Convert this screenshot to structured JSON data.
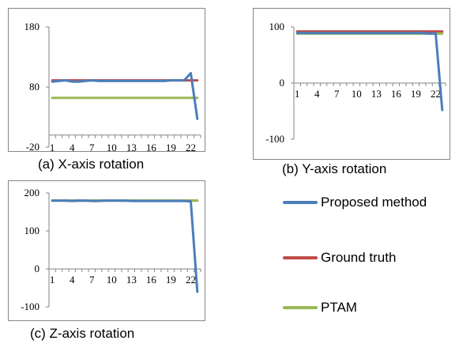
{
  "colors": {
    "proposed": "#4a7ebb",
    "ground_truth": "#be4b48",
    "ptam": "#98b954",
    "axis": "#868686",
    "frame": "#868686"
  },
  "legend": [
    {
      "name": "Proposed method",
      "color": "#4a7ebb"
    },
    {
      "name": "Ground truth",
      "color": "#be4b48"
    },
    {
      "name": "PTAM",
      "color": "#98b954"
    }
  ],
  "chart_data": [
    {
      "type": "line",
      "caption": "(a) X-axis rotation",
      "ylim": [
        -20,
        180
      ],
      "y_ticks": [
        -20,
        80,
        180
      ],
      "x_ticks": [
        "1",
        "4",
        "7",
        "10",
        "13",
        "16",
        "19",
        "22"
      ],
      "x_count": 23,
      "axis_y": 0,
      "series": [
        {
          "name": "Proposed method",
          "color": "#4a7ebb",
          "values": [
            89,
            90,
            91,
            89,
            89,
            90,
            91,
            90,
            90,
            90,
            90,
            90,
            90,
            90,
            90,
            90,
            90,
            90,
            91,
            91,
            91,
            103,
            27
          ]
        },
        {
          "name": "Ground truth",
          "color": "#be4b48",
          "values": [
            91,
            91,
            91,
            91,
            91,
            91,
            91,
            91,
            91,
            91,
            91,
            91,
            91,
            91,
            91,
            91,
            91,
            91,
            91,
            91,
            91,
            91,
            91
          ]
        },
        {
          "name": "PTAM",
          "color": "#98b954",
          "values": [
            62,
            62,
            62,
            62,
            62,
            62,
            62,
            62,
            62,
            62,
            62,
            62,
            62,
            62,
            62,
            62,
            62,
            62,
            62,
            62,
            62,
            62,
            62
          ]
        }
      ]
    },
    {
      "type": "line",
      "caption": "(b) Y-axis rotation",
      "ylim": [
        -100,
        100
      ],
      "y_ticks": [
        -100,
        0,
        100
      ],
      "x_ticks": [
        "1",
        "4",
        "7",
        "10",
        "13",
        "16",
        "19",
        "22"
      ],
      "x_count": 23,
      "axis_y": 0,
      "series": [
        {
          "name": "Proposed method",
          "color": "#4a7ebb",
          "values": [
            89,
            89,
            89,
            89,
            89,
            89,
            89,
            89,
            89,
            89,
            89,
            89,
            89,
            89,
            89,
            89,
            89,
            89,
            89,
            89,
            88,
            88,
            -48
          ]
        },
        {
          "name": "Ground truth",
          "color": "#be4b48",
          "values": [
            92,
            92,
            92,
            92,
            92,
            92,
            92,
            92,
            92,
            92,
            92,
            92,
            92,
            92,
            92,
            92,
            92,
            92,
            92,
            92,
            92,
            92,
            92
          ]
        },
        {
          "name": "PTAM",
          "color": "#98b954",
          "values": [
            88,
            88,
            88,
            88,
            88,
            88,
            88,
            88,
            88,
            88,
            88,
            88,
            88,
            88,
            88,
            88,
            88,
            88,
            88,
            88,
            88,
            88,
            88
          ]
        }
      ]
    },
    {
      "type": "line",
      "caption": "(c) Z-axis rotation",
      "ylim": [
        -100,
        200
      ],
      "y_ticks": [
        -100,
        0,
        100,
        200
      ],
      "x_ticks": [
        "1",
        "4",
        "7",
        "10",
        "13",
        "16",
        "19",
        "22"
      ],
      "x_count": 23,
      "axis_y": 0,
      "series": [
        {
          "name": "Proposed method",
          "color": "#4a7ebb",
          "values": [
            180,
            180,
            180,
            179,
            180,
            180,
            179,
            179,
            180,
            180,
            180,
            180,
            179,
            179,
            179,
            179,
            179,
            179,
            179,
            179,
            179,
            178,
            -60
          ]
        },
        {
          "name": "Ground truth",
          "color": "#be4b48",
          "values": [
            180,
            180,
            180,
            180,
            180,
            180,
            180,
            180,
            180,
            180,
            180,
            180,
            180,
            180,
            180,
            180,
            180,
            180,
            180,
            180,
            180,
            180,
            180
          ]
        },
        {
          "name": "PTAM",
          "color": "#98b954",
          "values": [
            180,
            180,
            180,
            180,
            180,
            180,
            180,
            180,
            180,
            180,
            180,
            180,
            180,
            180,
            180,
            180,
            180,
            180,
            180,
            180,
            180,
            180,
            180
          ]
        }
      ]
    }
  ]
}
